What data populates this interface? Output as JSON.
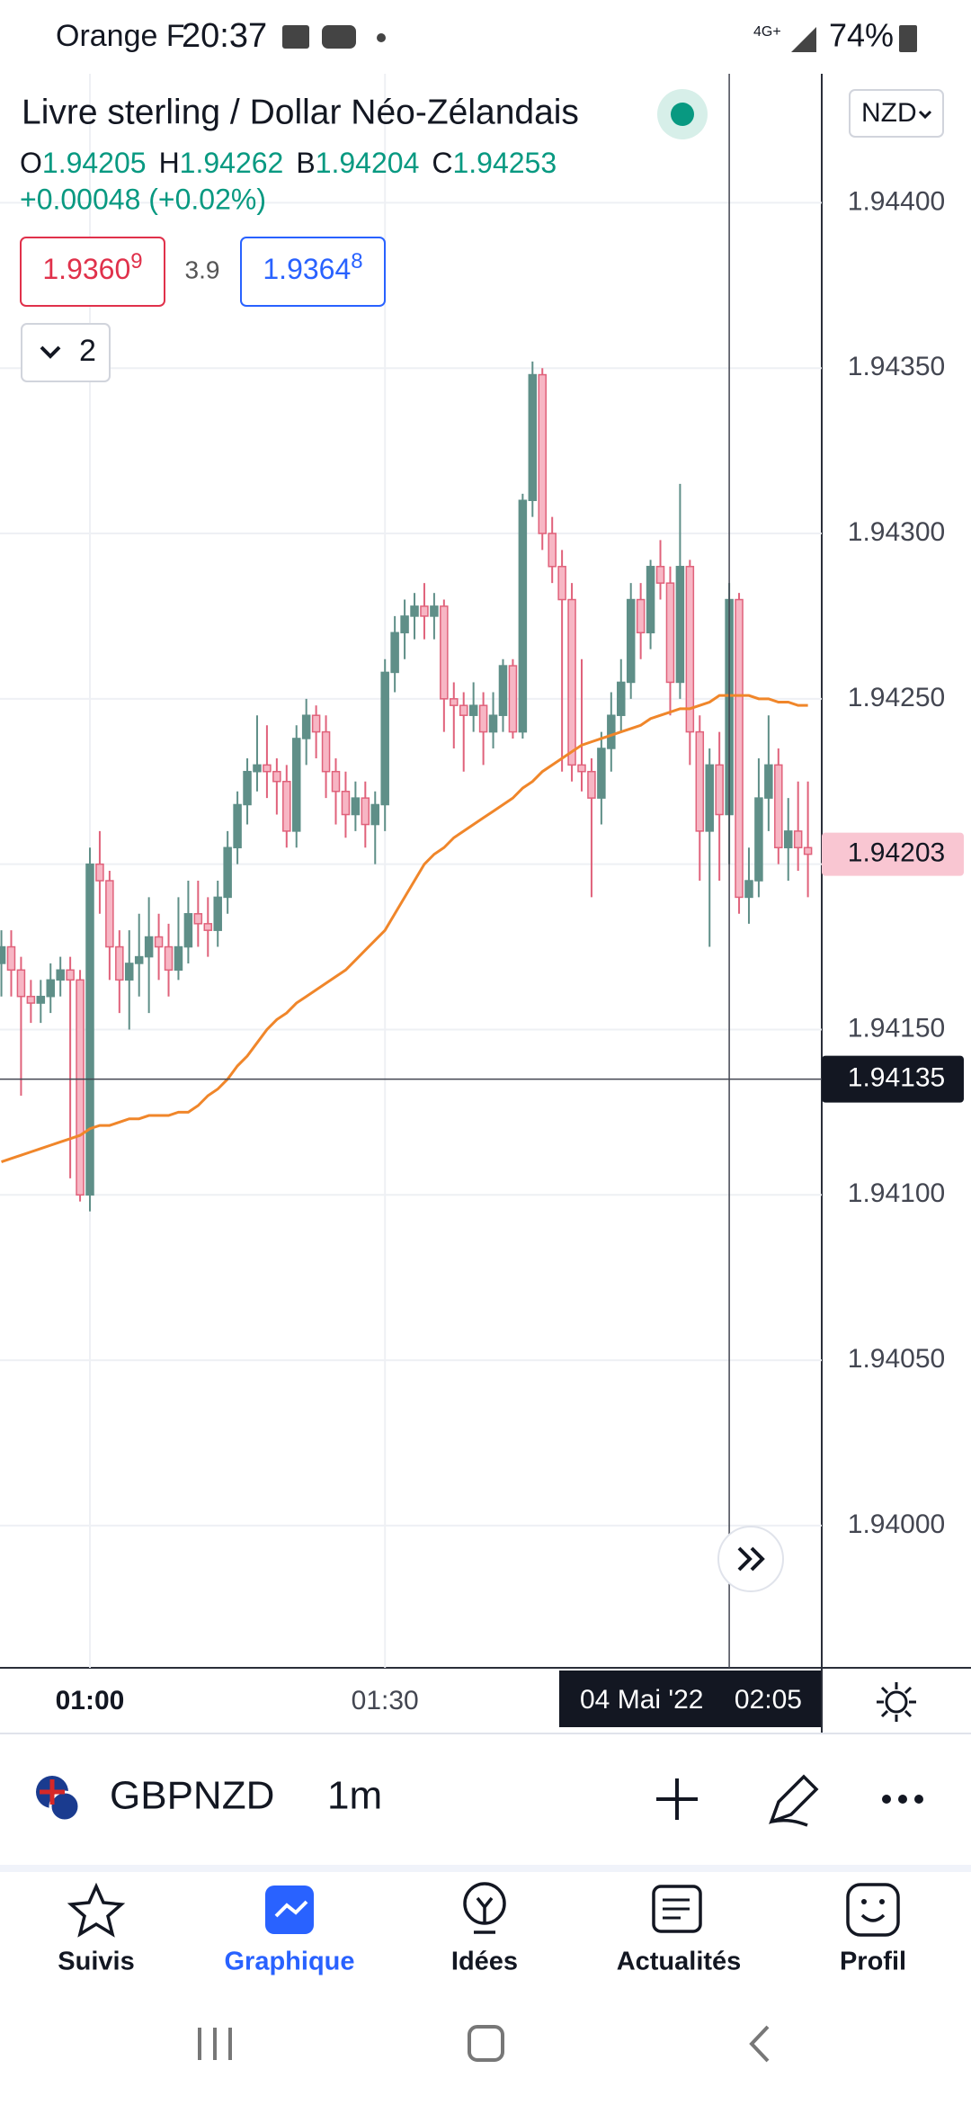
{
  "status_bar": {
    "carrier": "Orange F",
    "time": "20:37",
    "battery": "74%",
    "network": "4G+"
  },
  "header": {
    "title": "Livre sterling / Dollar Néo-Zélandais",
    "currency": "NZD",
    "ohlc": [
      {
        "key": "O",
        "value": "1.94205"
      },
      {
        "key": "H",
        "value": "1.94262"
      },
      {
        "key": "B",
        "value": "1.94204"
      },
      {
        "key": "C",
        "value": "1.94253"
      }
    ],
    "change": "+0.00048 (+0.02%)",
    "sell": {
      "main": "1.9360",
      "sup": "9"
    },
    "spread": "3.9",
    "buy": {
      "main": "1.9364",
      "sup": "8"
    },
    "indicators": "2"
  },
  "chart_data": {
    "type": "candlestick",
    "categories": [
      null,
      null,
      null,
      null,
      null,
      null,
      null,
      null,
      null,
      "01:00",
      null,
      null,
      null,
      null,
      null,
      null,
      null,
      null,
      null,
      null,
      null,
      null,
      null,
      null,
      null,
      null,
      null,
      null,
      null,
      null,
      null,
      null,
      null,
      null,
      null,
      null,
      null,
      null,
      null,
      "01:30",
      null,
      null,
      null,
      null,
      null,
      null,
      null,
      null,
      null,
      null,
      null,
      null,
      null,
      null,
      null,
      null,
      null,
      null,
      null,
      null,
      null,
      null,
      null,
      null,
      null,
      null,
      null,
      null,
      null,
      null,
      null,
      null,
      null,
      null,
      "02:05",
      null,
      null,
      null,
      null,
      null,
      null,
      null,
      null
    ],
    "open": [
      1.9417,
      1.94175,
      1.94168,
      1.9416,
      1.94158,
      1.9416,
      1.94165,
      1.94168,
      1.94165,
      1.941,
      1.942,
      1.94195,
      1.94175,
      1.94165,
      1.9417,
      1.94172,
      1.94178,
      1.94175,
      1.94168,
      1.94175,
      1.94185,
      1.94182,
      1.9418,
      1.9419,
      1.94205,
      1.94218,
      1.94228,
      1.9423,
      1.94228,
      1.94225,
      1.9421,
      1.94238,
      1.94245,
      1.9424,
      1.94228,
      1.94222,
      1.94215,
      1.9422,
      1.94212,
      1.94218,
      1.94258,
      1.9427,
      1.94275,
      1.94278,
      1.94275,
      1.94278,
      1.9425,
      1.94248,
      1.94245,
      1.94248,
      1.9424,
      1.94245,
      1.9426,
      1.9424,
      1.9431,
      1.94348,
      1.943,
      1.9429,
      1.9428,
      1.9423,
      1.94228,
      1.9422,
      1.94235,
      1.94245,
      1.94255,
      1.9428,
      1.9427,
      1.9429,
      1.94285,
      1.94255,
      1.9429,
      1.9424,
      1.9421,
      1.9423,
      1.94215,
      1.9428,
      1.9419,
      1.94195,
      1.9422,
      1.9423,
      1.94205,
      1.9421,
      1.94205
    ],
    "high": [
      1.9418,
      1.9418,
      1.94172,
      1.94165,
      1.94165,
      1.9417,
      1.94172,
      1.94172,
      1.94168,
      1.94205,
      1.9421,
      1.94198,
      1.9418,
      1.9418,
      1.94185,
      1.9419,
      1.94185,
      1.94182,
      1.9419,
      1.94195,
      1.94195,
      1.9419,
      1.94195,
      1.9421,
      1.94222,
      1.94232,
      1.94245,
      1.94242,
      1.94232,
      1.9423,
      1.94242,
      1.9425,
      1.94248,
      1.94245,
      1.94232,
      1.94228,
      1.94225,
      1.94225,
      1.94222,
      1.94262,
      1.94275,
      1.9428,
      1.94282,
      1.94285,
      1.94282,
      1.9428,
      1.94255,
      1.94252,
      1.94255,
      1.94252,
      1.94252,
      1.94262,
      1.94262,
      1.94312,
      1.94352,
      1.9435,
      1.94305,
      1.94295,
      1.94285,
      1.94262,
      1.94232,
      1.9424,
      1.94252,
      1.94262,
      1.94285,
      1.94285,
      1.94292,
      1.94298,
      1.9429,
      1.94315,
      1.94292,
      1.94245,
      1.94235,
      1.9424,
      1.94285,
      1.94282,
      1.94205,
      1.94232,
      1.94245,
      1.94235,
      1.9422,
      1.94225,
      1.94225
    ],
    "low": [
      1.9416,
      1.9416,
      1.9413,
      1.94152,
      1.94152,
      1.94155,
      1.9416,
      1.94105,
      1.94098,
      1.94095,
      1.94185,
      1.94165,
      1.94155,
      1.9415,
      1.9416,
      1.94155,
      1.94165,
      1.9416,
      1.94165,
      1.9417,
      1.94175,
      1.94172,
      1.94175,
      1.94185,
      1.942,
      1.94212,
      1.94222,
      1.9422,
      1.94215,
      1.94205,
      1.94205,
      1.9423,
      1.94232,
      1.9422,
      1.94212,
      1.94208,
      1.9421,
      1.94205,
      1.942,
      1.9421,
      1.94252,
      1.94262,
      1.94268,
      1.94268,
      1.94268,
      1.9424,
      1.94235,
      1.94228,
      1.9424,
      1.9423,
      1.94235,
      1.9424,
      1.94238,
      1.94238,
      1.94305,
      1.94295,
      1.94285,
      1.94228,
      1.94225,
      1.94222,
      1.9419,
      1.94212,
      1.94228,
      1.9424,
      1.9425,
      1.94262,
      1.94265,
      1.9428,
      1.94245,
      1.9425,
      1.9423,
      1.94195,
      1.94175,
      1.94195,
      1.942,
      1.94185,
      1.94182,
      1.9419,
      1.9421,
      1.942,
      1.94195,
      1.94198,
      1.9419
    ],
    "close": [
      1.94175,
      1.94168,
      1.9416,
      1.94158,
      1.9416,
      1.94165,
      1.94168,
      1.94165,
      1.941,
      1.942,
      1.94195,
      1.94175,
      1.94165,
      1.9417,
      1.94172,
      1.94178,
      1.94175,
      1.94168,
      1.94175,
      1.94185,
      1.94182,
      1.9418,
      1.9419,
      1.94205,
      1.94218,
      1.94228,
      1.9423,
      1.94228,
      1.94225,
      1.9421,
      1.94238,
      1.94245,
      1.9424,
      1.94228,
      1.94222,
      1.94215,
      1.9422,
      1.94212,
      1.94218,
      1.94258,
      1.9427,
      1.94275,
      1.94278,
      1.94275,
      1.94278,
      1.9425,
      1.94248,
      1.94245,
      1.94248,
      1.9424,
      1.94245,
      1.9426,
      1.9424,
      1.9431,
      1.94348,
      1.943,
      1.9429,
      1.9428,
      1.9423,
      1.94228,
      1.9422,
      1.94235,
      1.94245,
      1.94255,
      1.9428,
      1.9427,
      1.9429,
      1.94285,
      1.94255,
      1.9429,
      1.9424,
      1.9421,
      1.9423,
      1.94215,
      1.9428,
      1.9419,
      1.94195,
      1.9422,
      1.9423,
      1.94205,
      1.9421,
      1.94205,
      1.94203
    ],
    "colors": {
      "up": "#5f8f88",
      "down_fill": "#f7b6c4",
      "down_stroke": "#e0627b"
    },
    "ma": {
      "color": "#f0862a",
      "values": [
        1.9411,
        1.94111,
        1.94112,
        1.94113,
        1.94114,
        1.94115,
        1.94116,
        1.94117,
        1.94118,
        1.9412,
        1.94121,
        1.94121,
        1.94122,
        1.94123,
        1.94123,
        1.94124,
        1.94124,
        1.94124,
        1.94125,
        1.94125,
        1.94127,
        1.9413,
        1.94132,
        1.94135,
        1.94139,
        1.94142,
        1.94146,
        1.9415,
        1.94153,
        1.94155,
        1.94158,
        1.9416,
        1.94162,
        1.94164,
        1.94166,
        1.94168,
        1.94171,
        1.94174,
        1.94177,
        1.9418,
        1.94185,
        1.9419,
        1.94195,
        1.942,
        1.94203,
        1.94205,
        1.94208,
        1.9421,
        1.94212,
        1.94214,
        1.94216,
        1.94218,
        1.9422,
        1.94223,
        1.94225,
        1.94228,
        1.9423,
        1.94232,
        1.94234,
        1.94236,
        1.94237,
        1.94238,
        1.94239,
        1.9424,
        1.94241,
        1.94242,
        1.94244,
        1.94245,
        1.94246,
        1.94247,
        1.94247,
        1.94248,
        1.94249,
        1.94251,
        1.94251,
        1.94251,
        1.94251,
        1.9425,
        1.9425,
        1.94249,
        1.94249,
        1.94248,
        1.94248
      ]
    },
    "ylim": [
      1.93957,
      1.94439
    ],
    "yticks": [
      {
        "value": 1.944,
        "label": "1.94400"
      },
      {
        "value": 1.9435,
        "label": "1.94350"
      },
      {
        "value": 1.943,
        "label": "1.94300"
      },
      {
        "value": 1.9425,
        "label": "1.94250"
      },
      {
        "value": 1.942,
        "label": "1.94200"
      },
      {
        "value": 1.9415,
        "label": "1.94150"
      },
      {
        "value": 1.941,
        "label": "1.94100"
      },
      {
        "value": 1.9405,
        "label": "1.94050"
      },
      {
        "value": 1.94,
        "label": "1.94000"
      }
    ],
    "grid": true,
    "crosshair": {
      "date": "04 Mai '22",
      "time": "02:05",
      "price": 1.94135
    }
  },
  "toolbar": {
    "symbol": "GBPNZD",
    "interval": "1m"
  },
  "tabs": [
    {
      "label": "Suivis"
    },
    {
      "label": "Graphique",
      "active": true
    },
    {
      "label": "Idées"
    },
    {
      "label": "Actualités"
    },
    {
      "label": "Profil"
    }
  ]
}
